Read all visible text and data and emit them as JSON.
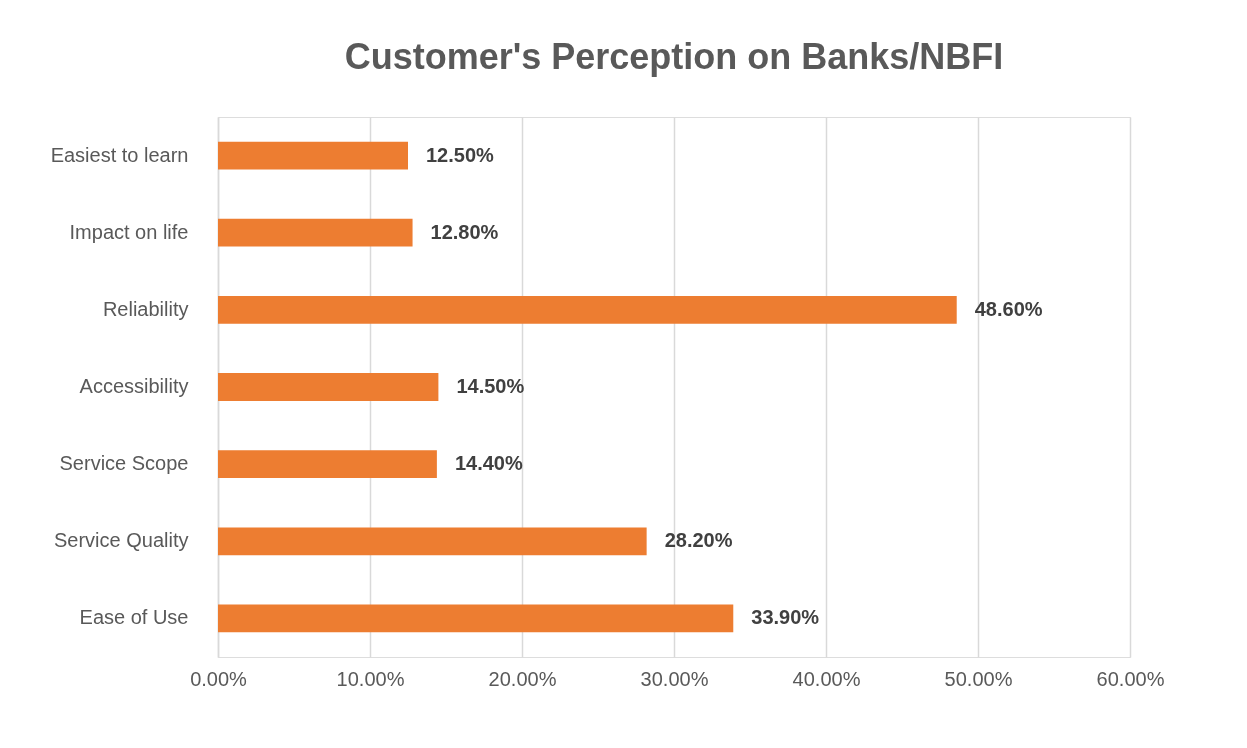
{
  "chart_data": {
    "type": "bar",
    "orientation": "horizontal",
    "title": "Customer's Perception on Banks/NBFI",
    "categories": [
      "Easiest to learn",
      "Impact on life",
      "Reliability",
      "Accessibility",
      "Service Scope",
      "Service Quality",
      "Ease of Use"
    ],
    "values": [
      12.5,
      12.8,
      48.6,
      14.5,
      14.4,
      28.2,
      33.9
    ],
    "value_labels": [
      "12.50%",
      "12.80%",
      "48.60%",
      "14.50%",
      "14.40%",
      "28.20%",
      "33.90%"
    ],
    "color": "#ed7d31",
    "xlim": [
      0,
      60
    ],
    "xticks": [
      {
        "value": 0,
        "label": "0.00%"
      },
      {
        "value": 10,
        "label": "10.00%"
      },
      {
        "value": 20,
        "label": "20.00%"
      },
      {
        "value": 30,
        "label": "30.00%"
      },
      {
        "value": 40,
        "label": "40.00%"
      },
      {
        "value": 50,
        "label": "50.00%"
      },
      {
        "value": 60,
        "label": "60.00%"
      }
    ],
    "grid": "x"
  }
}
